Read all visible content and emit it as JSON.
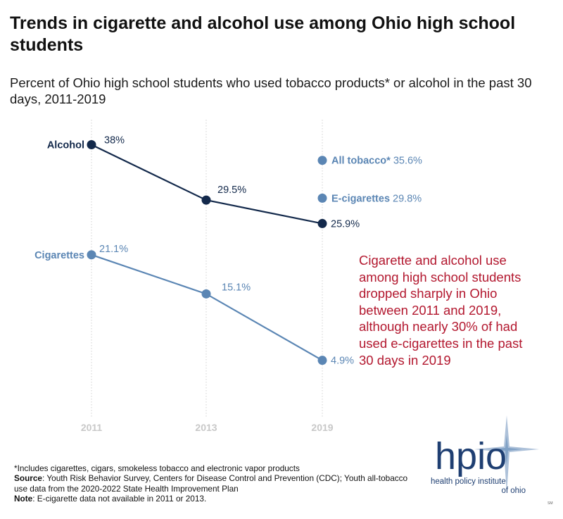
{
  "title": "Trends in cigarette and alcohol use among Ohio high school students",
  "subtitle": "Percent of Ohio high school students who used tobacco products* or alcohol in the past 30 days, 2011-2019",
  "chart_data": {
    "type": "line",
    "x": [
      "2011",
      "2013",
      "2019"
    ],
    "series": [
      {
        "name": "Alcohol",
        "values": [
          38,
          29.5,
          25.9
        ],
        "labels": [
          "38%",
          "29.5%",
          "25.9%"
        ],
        "color": "#13294b"
      },
      {
        "name": "Cigarettes",
        "values": [
          21.1,
          15.1,
          4.9
        ],
        "labels": [
          "21.1%",
          "15.1%",
          "4.9%"
        ],
        "color": "#5b86b4"
      }
    ],
    "points": [
      {
        "name": "All tobacco*",
        "x": "2019",
        "value": 35.6,
        "label": "35.6%",
        "color": "#5b86b4"
      },
      {
        "name": "E-cigarettes",
        "x": "2019",
        "value": 29.8,
        "label": "29.8%",
        "color": "#5b86b4"
      }
    ],
    "ylim": [
      0,
      40
    ],
    "grid": "vertical-dotted",
    "xlabel": "",
    "ylabel": ""
  },
  "annotation": "Cigarette and alcohol use among high school students dropped sharply in Ohio between 2011 and 2019, although nearly 30% of had used e-cigarettes in the past 30 days in 2019",
  "footnotes": {
    "note1": "*Includes cigarettes, cigars, smokeless tobacco and electronic vapor products",
    "source_label": "Source",
    "source_text": ": Youth Risk Behavior Survey, Centers for Disease Control and Prevention (CDC); Youth all-tobacco use data from the 2020-2022 State Health Improvement Plan",
    "note_label": "Note",
    "note_text": ": E-cigarette data not available in 2011 or 2013."
  },
  "logo": {
    "wordmark": "hpio",
    "tagline_1": "health policy institute",
    "tagline_2": "of ohio",
    "mark": "SM"
  },
  "colors": {
    "navy": "#13294b",
    "blue": "#5b86b4",
    "red": "#b3182f",
    "grid": "#d0d0d0",
    "tick": "#c8c8c8"
  }
}
